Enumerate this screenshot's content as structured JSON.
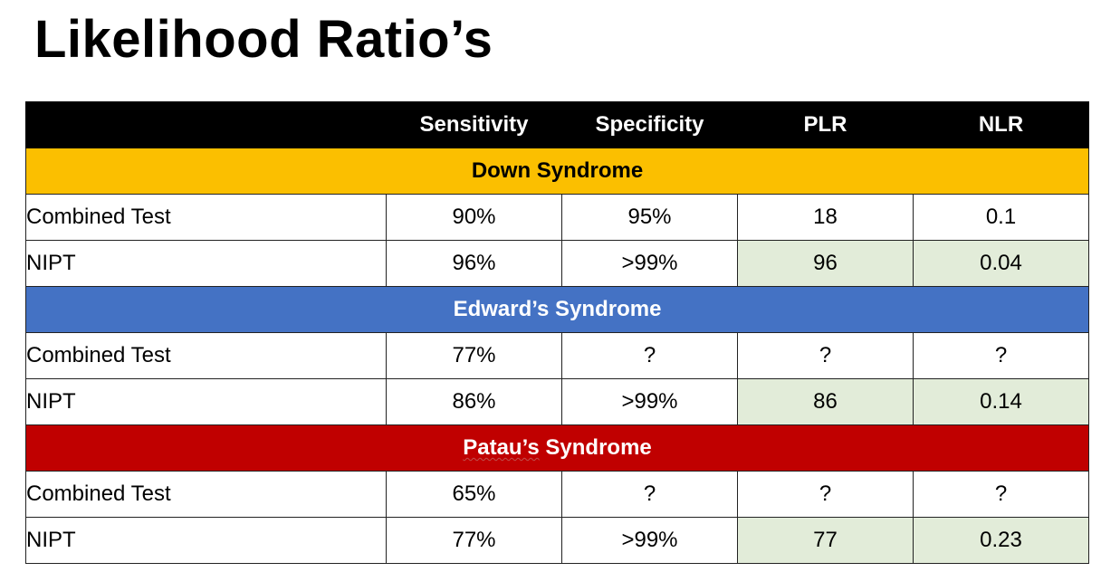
{
  "title": "Likelihood Ratio’s",
  "colors": {
    "header_bg": "#000000",
    "down_bg": "#fbbf00",
    "edwards_bg": "#4472c4",
    "patau_bg": "#c00000",
    "highlight_bg": "#e2ecd9"
  },
  "header": [
    "",
    "Sensitivity",
    "Specificity",
    "PLR",
    "NLR"
  ],
  "sections": [
    {
      "name": "Down Syndrome",
      "rows": [
        {
          "test": "Combined Test",
          "sensitivity": "90%",
          "specificity": "95%",
          "plr": "18",
          "nlr": "0.1"
        },
        {
          "test": "NIPT",
          "sensitivity": "96%",
          "specificity": ">99%",
          "plr": "96",
          "nlr": "0.04"
        }
      ]
    },
    {
      "name": "Edward’s Syndrome",
      "rows": [
        {
          "test": "Combined Test",
          "sensitivity": "77%",
          "specificity": "?",
          "plr": "?",
          "nlr": "?"
        },
        {
          "test": "NIPT",
          "sensitivity": "86%",
          "specificity": ">99%",
          "plr": "86",
          "nlr": "0.14"
        }
      ]
    },
    {
      "name_parts": [
        "Patau’s",
        " Syndrome"
      ],
      "rows": [
        {
          "test": "Combined Test",
          "sensitivity": "65%",
          "specificity": "?",
          "plr": "?",
          "nlr": "?"
        },
        {
          "test": "NIPT",
          "sensitivity": "77%",
          "specificity": ">99%",
          "plr": "77",
          "nlr": "0.23"
        }
      ]
    }
  ]
}
